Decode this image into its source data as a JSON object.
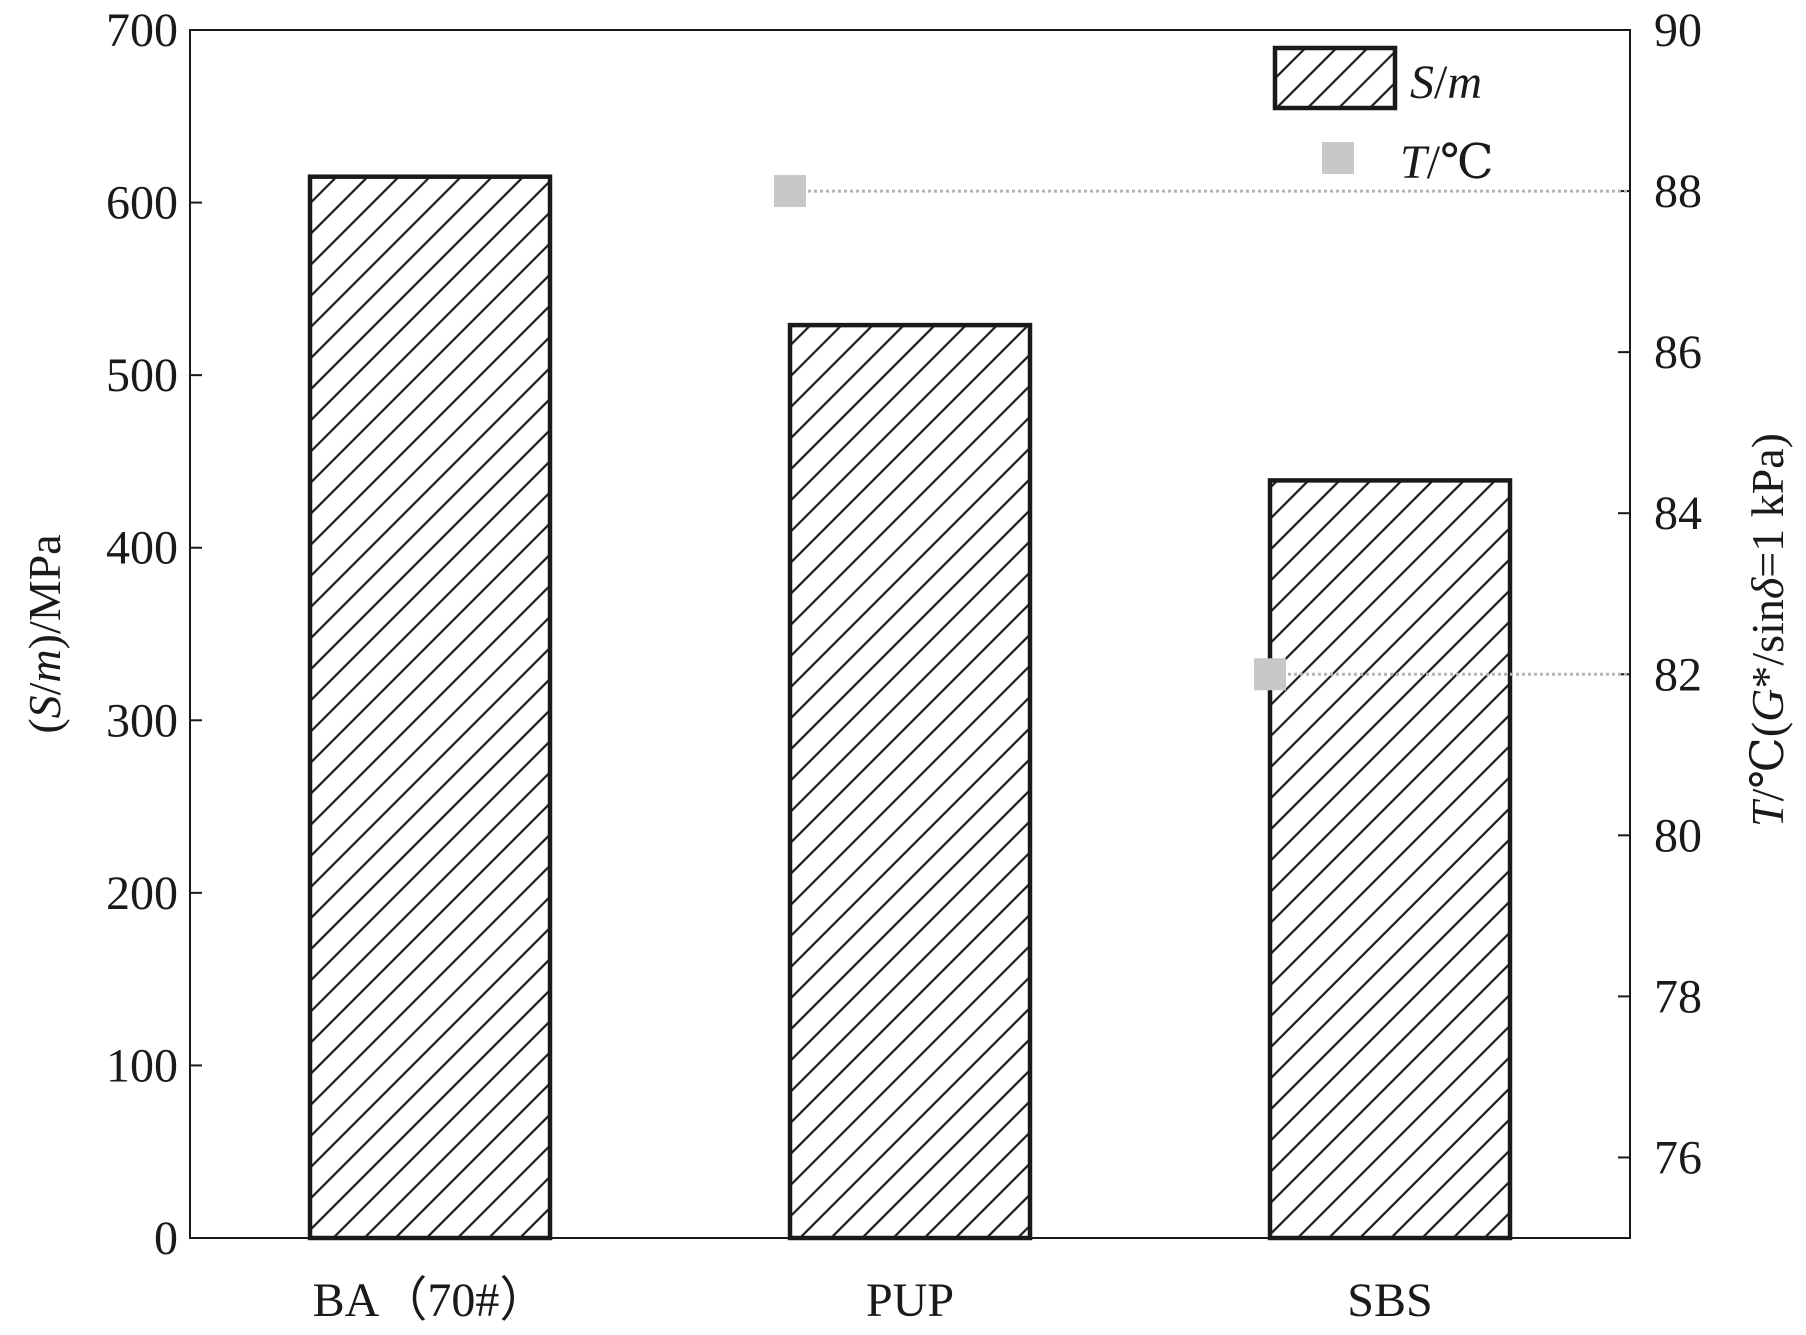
{
  "chart_data": {
    "type": "bar",
    "categories": [
      "BA（70#）",
      "PUP",
      "SBS"
    ],
    "series": [
      {
        "name": "S/m",
        "axis": "left",
        "kind": "bar",
        "pattern": "diagonal-hatch",
        "values": [
          615,
          529,
          439
        ]
      },
      {
        "name": "T/℃",
        "axis": "right",
        "kind": "marker",
        "values": [
          null,
          88,
          82
        ]
      }
    ],
    "y_left": {
      "label_parts": [
        {
          "text": "(",
          "italic": false
        },
        {
          "text": "S",
          "italic": true
        },
        {
          "text": "/",
          "italic": false
        },
        {
          "text": "m",
          "italic": true
        },
        {
          "text": ")/MPa",
          "italic": false
        }
      ],
      "range": [
        0,
        700
      ],
      "ticks": [
        "0",
        "100",
        "200",
        "300",
        "400",
        "500",
        "600",
        "700"
      ]
    },
    "y_right": {
      "label_parts": [
        {
          "text": "T",
          "italic": true
        },
        {
          "text": "/℃(",
          "italic": false
        },
        {
          "text": "G",
          "italic": true
        },
        {
          "text": "*/sin",
          "italic": false
        },
        {
          "text": "δ",
          "italic": true
        },
        {
          "text": "=1 kPa)",
          "italic": false
        }
      ],
      "range": [
        75,
        90
      ],
      "ticks": [
        "76",
        "78",
        "80",
        "82",
        "84",
        "86",
        "88",
        "90"
      ]
    },
    "legend": {
      "position": "top-right",
      "items": [
        {
          "label_parts": [
            {
              "text": "S",
              "italic": true
            },
            {
              "text": "/",
              "italic": false
            },
            {
              "text": "m",
              "italic": true
            }
          ],
          "symbol": "hatched-bar"
        },
        {
          "label_parts": [
            {
              "text": "T",
              "italic": true
            },
            {
              "text": "/℃",
              "italic": false
            }
          ],
          "symbol": "square-marker"
        }
      ]
    },
    "grid": false,
    "colors": {
      "bar_stroke": "#1a1a1a",
      "hatch": "#1a1a1a",
      "marker": "#c8c8c8",
      "dotted_line": "#b4b4b4"
    }
  }
}
